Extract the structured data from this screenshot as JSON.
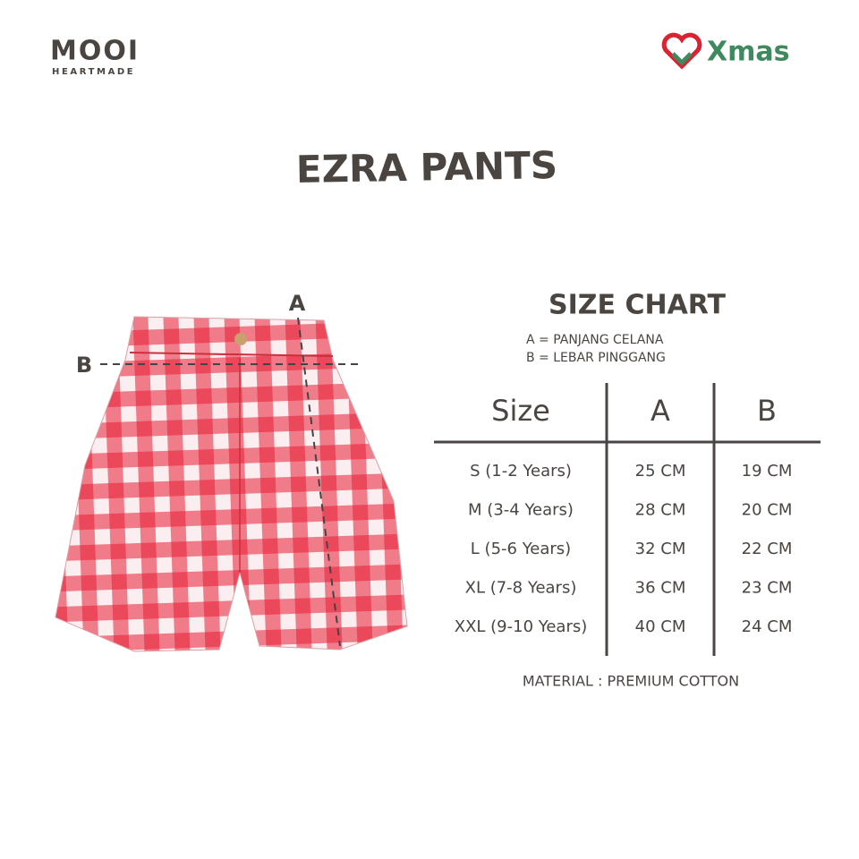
{
  "brand": {
    "name": "MOOI",
    "tagline": "HEARTMADE"
  },
  "badge": "Xmas",
  "title": "EZRA PANTS",
  "diagram": {
    "a_label": "A",
    "b_label": "B"
  },
  "size_chart": {
    "title": "SIZE CHART",
    "legend": [
      "A = PANJANG CELANA",
      "B = LEBAR PINGGANG"
    ],
    "table": {
      "headers": [
        "Size",
        "A",
        "B"
      ],
      "rows": [
        [
          "S (1-2 Years)",
          "25 CM",
          "19 CM"
        ],
        [
          "M (3-4 Years)",
          "28 CM",
          "20 CM"
        ],
        [
          "L (5-6 Years)",
          "32 CM",
          "22 CM"
        ],
        [
          "XL (7-8 Years)",
          "36 CM",
          "23 CM"
        ],
        [
          "XXL (9-10 Years)",
          "40 CM",
          "24 CM"
        ]
      ]
    },
    "material": "MATERIAL : PREMIUM COTTON"
  }
}
